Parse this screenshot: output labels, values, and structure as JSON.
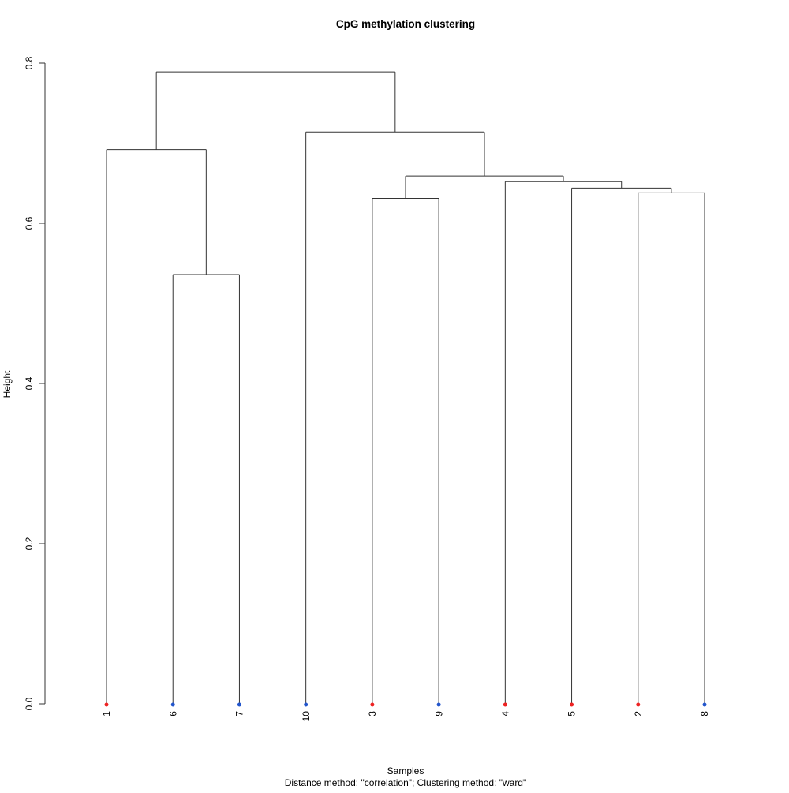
{
  "title": "CpG methylation clustering",
  "xlabel": "Samples",
  "subtitle": "Distance method: \"correlation\"; Clustering method: \"ward\"",
  "ylabel": "Height",
  "colors": {
    "red": "#ee2222",
    "blue": "#2255cc",
    "line": "#333333"
  },
  "chart_data": {
    "type": "dendrogram",
    "title": "CpG methylation clustering",
    "xlabel": "Samples",
    "ylabel": "Height",
    "sub": "Distance method: \"correlation\"; Clustering method: \"ward\"",
    "ylim": [
      0.0,
      0.8
    ],
    "y_ticks": [
      0.0,
      0.2,
      0.4,
      0.6,
      0.8
    ],
    "y_tick_labels": [
      "0.0",
      "0.2",
      "0.4",
      "0.6",
      "0.8"
    ],
    "leaf_order": [
      "1",
      "6",
      "7",
      "10",
      "3",
      "9",
      "4",
      "5",
      "2",
      "8"
    ],
    "leaf_groups": {
      "1": "red",
      "2": "red",
      "3": "red",
      "4": "red",
      "5": "red",
      "6": "blue",
      "7": "blue",
      "8": "blue",
      "9": "blue",
      "10": "blue"
    },
    "merge_heights": {
      "root": 0.789,
      "10_with_right_block": 0.714,
      "1_with_6_7": 0.692,
      "3_9_with_4_5_2_8": 0.659,
      "4_with_5_2_8": 0.652,
      "5_with_2_8": 0.644,
      "2_8": 0.638,
      "3_9": 0.631,
      "6_7": 0.536
    },
    "tree": {
      "height": 0.789,
      "children": [
        {
          "height": 0.692,
          "children": [
            {
              "leaf": "1",
              "group": "red"
            },
            {
              "height": 0.536,
              "children": [
                {
                  "leaf": "6",
                  "group": "blue"
                },
                {
                  "leaf": "7",
                  "group": "blue"
                }
              ]
            }
          ]
        },
        {
          "height": 0.714,
          "children": [
            {
              "leaf": "10",
              "group": "blue"
            },
            {
              "height": 0.659,
              "children": [
                {
                  "height": 0.631,
                  "children": [
                    {
                      "leaf": "3",
                      "group": "red"
                    },
                    {
                      "leaf": "9",
                      "group": "blue"
                    }
                  ]
                },
                {
                  "height": 0.652,
                  "children": [
                    {
                      "leaf": "4",
                      "group": "red"
                    },
                    {
                      "height": 0.644,
                      "children": [
                        {
                          "leaf": "5",
                          "group": "red"
                        },
                        {
                          "height": 0.638,
                          "children": [
                            {
                              "leaf": "2",
                              "group": "red"
                            },
                            {
                              "leaf": "8",
                              "group": "blue"
                            }
                          ]
                        }
                      ]
                    }
                  ]
                }
              ]
            }
          ]
        }
      ]
    }
  }
}
